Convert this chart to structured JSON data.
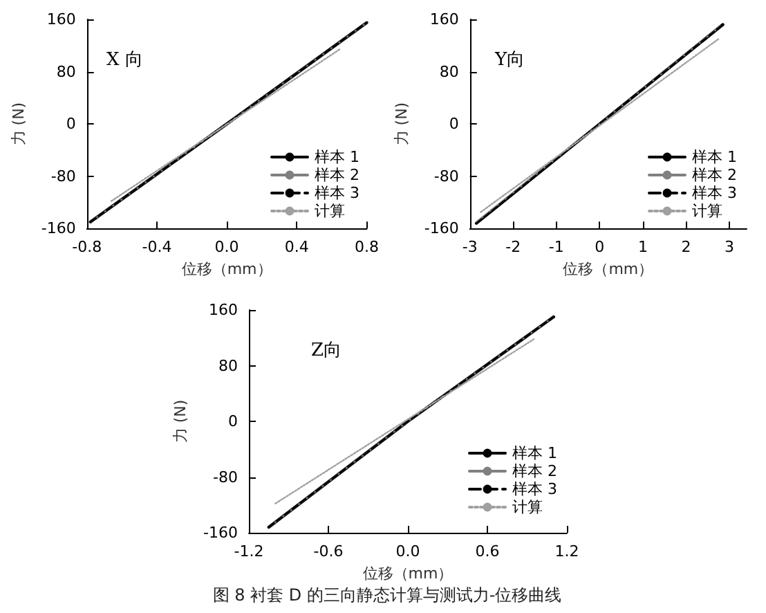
{
  "chart_data": [
    {
      "type": "line",
      "title": "X 向",
      "xlabel": "位移（mm）",
      "ylabel": "力 (N)",
      "xlim": [
        -0.8,
        0.8
      ],
      "xticks": [
        -0.8,
        -0.4,
        {
          "value": 0,
          "label": "0.0"
        },
        0.4,
        0.8
      ],
      "ylim": [
        -160,
        160
      ],
      "yticks": [
        -160,
        -80,
        0,
        80,
        160
      ],
      "grid": false,
      "legend": "bottom right",
      "marker": "none",
      "series": [
        {
          "name": "样本 1",
          "color": "#000000",
          "line_style": "solid",
          "x": [
            -0.78,
            0,
            0.8
          ],
          "values": [
            -150,
            0,
            155
          ]
        },
        {
          "name": "样本 2",
          "color": "#808080",
          "line_style": "solid",
          "x": [
            -0.78,
            0,
            0.8
          ],
          "values": [
            -150,
            0,
            155
          ]
        },
        {
          "name": "样本 3",
          "color": "#000000",
          "line_style": "dashed",
          "x": [
            -0.78,
            0,
            0.8
          ],
          "values": [
            -150,
            0,
            155
          ]
        },
        {
          "name": "计算",
          "color": "#a0a0a0",
          "line_style": "dotted",
          "x": [
            -0.66,
            0.65
          ],
          "values": [
            -118,
            115
          ]
        }
      ]
    },
    {
      "type": "line",
      "title": "Y向",
      "xlabel": "位移（mm）",
      "ylabel": "力 (N)",
      "xlim": [
        -3,
        3.4
      ],
      "xticks": [
        -3,
        -2,
        -1,
        0,
        1,
        2,
        3
      ],
      "ylim": [
        -160,
        160
      ],
      "yticks": [
        -160,
        -80,
        0,
        80,
        160
      ],
      "grid": false,
      "legend": "bottom right",
      "marker": "none",
      "series": [
        {
          "name": "样本 1",
          "color": "#000000",
          "line_style": "solid",
          "x": [
            -2.85,
            0,
            2.85
          ],
          "values": [
            -152,
            0,
            152
          ]
        },
        {
          "name": "样本 2",
          "color": "#808080",
          "line_style": "solid",
          "x": [
            -2.85,
            0,
            2.8
          ],
          "values": [
            -150,
            0,
            150
          ]
        },
        {
          "name": "样本 3",
          "color": "#000000",
          "line_style": "dashed",
          "x": [
            -2.85,
            0,
            2.85
          ],
          "values": [
            -152,
            0,
            152
          ]
        },
        {
          "name": "计算",
          "color": "#a0a0a0",
          "line_style": "dotted",
          "x": [
            -2.75,
            2.75
          ],
          "values": [
            -135,
            130
          ]
        }
      ]
    },
    {
      "type": "line",
      "title": "Z向",
      "xlabel": "位移（mm）",
      "ylabel": "力 (N)",
      "xlim": [
        -1.2,
        1.2
      ],
      "xticks": [
        {
          "value": -1.2,
          "label": "-1.2"
        },
        -0.6,
        {
          "value": 0,
          "label": "0.0"
        },
        0.6,
        {
          "value": 1.2,
          "label": "1.2"
        }
      ],
      "ylim": [
        -160,
        160
      ],
      "yticks": [
        -160,
        -80,
        0,
        80,
        160
      ],
      "grid": false,
      "legend": "bottom right",
      "marker": "none",
      "annotations": [
        "图 8 衬套 D 的三向静态计算与测试力-位移曲线"
      ],
      "series": [
        {
          "name": "样本 1",
          "color": "#000000",
          "line_style": "solid",
          "x": [
            -1.05,
            0,
            1.1
          ],
          "values": [
            -152,
            0,
            150
          ]
        },
        {
          "name": "样本 2",
          "color": "#808080",
          "line_style": "solid",
          "x": [
            -1.05,
            0,
            1.1
          ],
          "values": [
            -152,
            0,
            150
          ]
        },
        {
          "name": "样本 3",
          "color": "#000000",
          "line_style": "dashed",
          "x": [
            -1.05,
            0,
            1.1
          ],
          "values": [
            -152,
            0,
            150
          ]
        },
        {
          "name": "计算",
          "color": "#a0a0a0",
          "line_style": "dotted",
          "x": [
            -1.0,
            0.95
          ],
          "values": [
            -118,
            118
          ]
        }
      ]
    }
  ]
}
